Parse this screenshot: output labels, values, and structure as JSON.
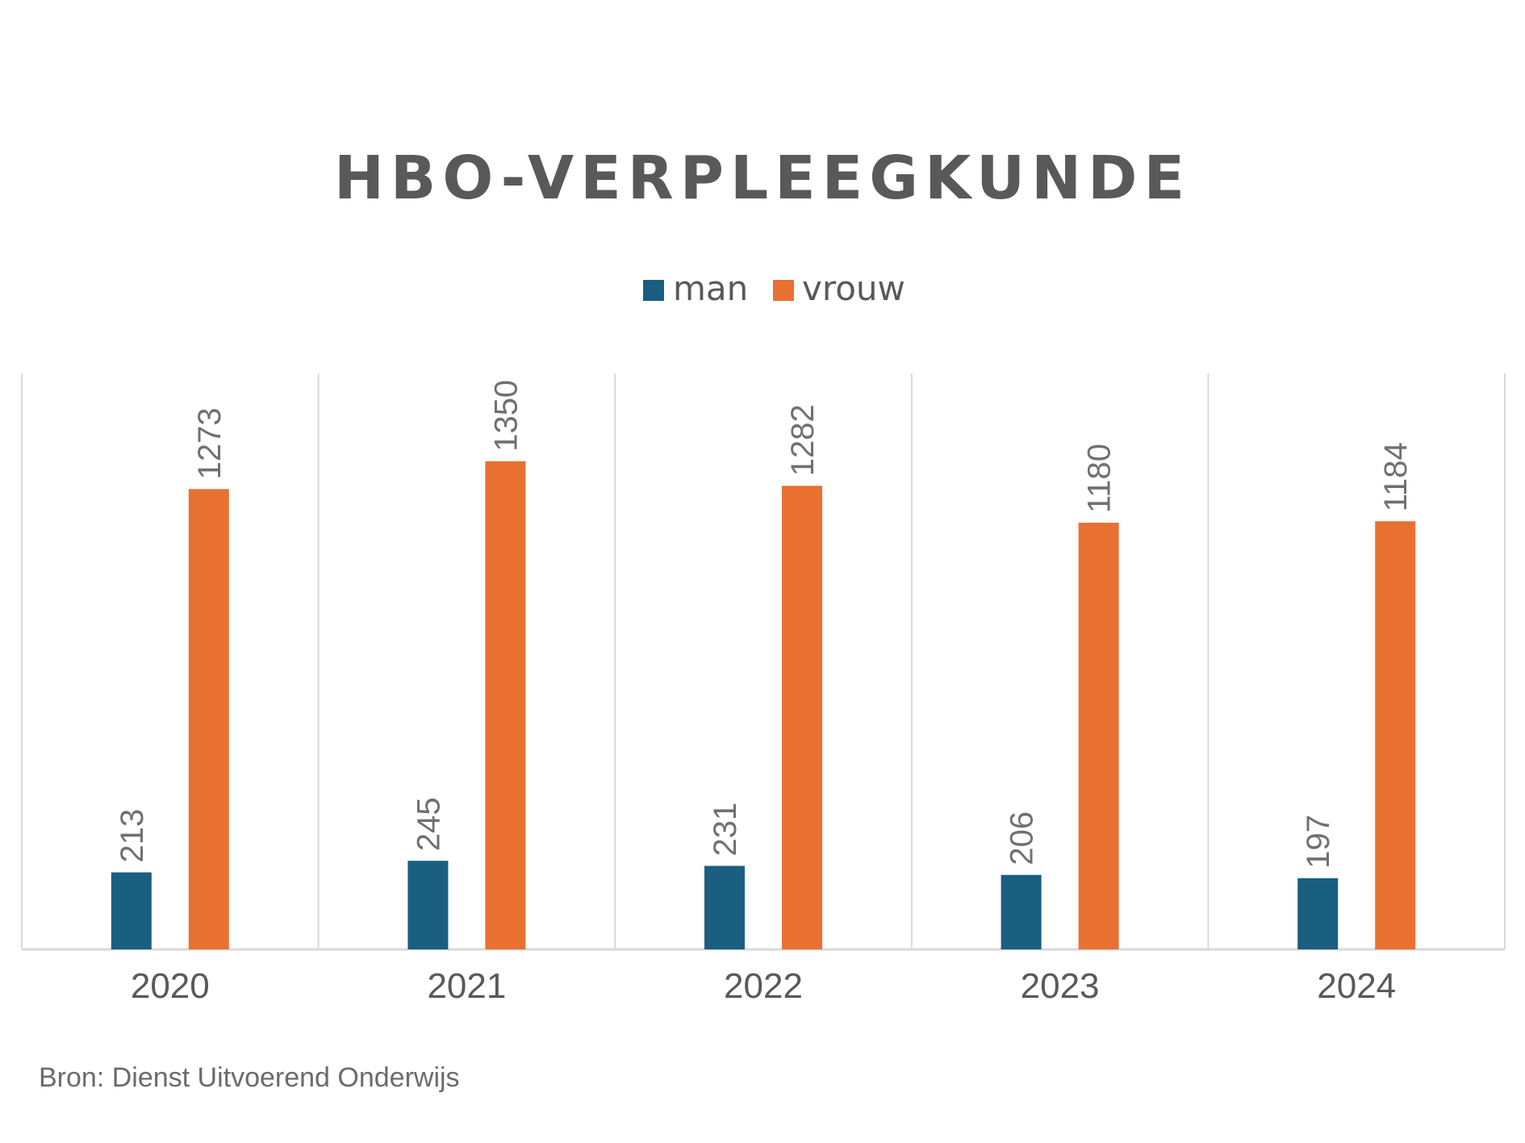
{
  "chart_data": {
    "type": "bar",
    "title": "HBO-VERPLEEGKUNDE",
    "categories": [
      "2020",
      "2021",
      "2022",
      "2023",
      "2024"
    ],
    "series": [
      {
        "name": "man",
        "values": [
          213,
          245,
          231,
          206,
          197
        ]
      },
      {
        "name": "vrouw",
        "values": [
          1273,
          1350,
          1282,
          1180,
          1184
        ]
      }
    ],
    "xlabel": "",
    "ylabel": "",
    "ylim": [
      0,
      1550
    ],
    "grid": "vertical category separators",
    "legend": "top-center",
    "data_labels": "rotated vertical above bars"
  },
  "colors": {
    "man": "#1a5e80",
    "vrouw": "#e87132",
    "text": "#595959",
    "grid": "#d9d9d9"
  },
  "source": "Bron: Dienst Uitvoerend Onderwijs"
}
